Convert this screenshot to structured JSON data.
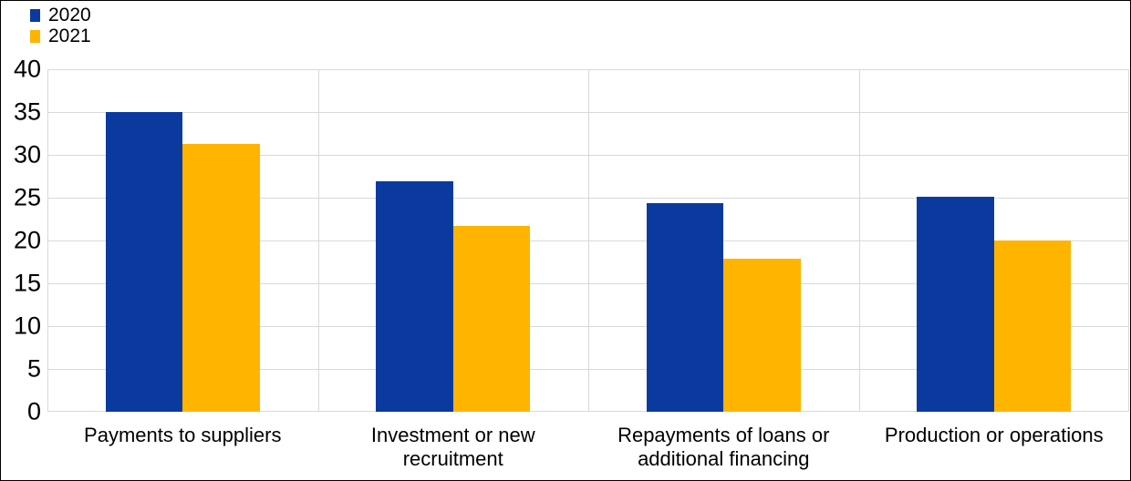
{
  "chart_data": {
    "type": "bar",
    "title": "",
    "categories": [
      "Payments to suppliers",
      "Investment or new recruitment",
      "Repayments of loans or additional financing",
      "Production or operations"
    ],
    "category_label_lines": [
      [
        "Payments to suppliers"
      ],
      [
        "Investment or new",
        "recruitment"
      ],
      [
        "Repayments of loans or",
        "additional financing"
      ],
      [
        "Production or operations"
      ]
    ],
    "series": [
      {
        "name": "2020",
        "color": "#0a3a9e",
        "values": [
          35.0,
          26.9,
          24.4,
          25.1
        ]
      },
      {
        "name": "2021",
        "color": "#ffb400",
        "values": [
          31.3,
          21.7,
          17.9,
          20.0
        ]
      }
    ],
    "xlabel": "",
    "ylabel": "",
    "ylim": [
      0,
      40
    ],
    "yticks": [
      0,
      5,
      10,
      15,
      20,
      25,
      30,
      35,
      40
    ],
    "grid": true,
    "legend_position": "top-left",
    "gridline_color": "#d9d9d9",
    "background_color": "#ffffff",
    "text_color": "#000000"
  }
}
